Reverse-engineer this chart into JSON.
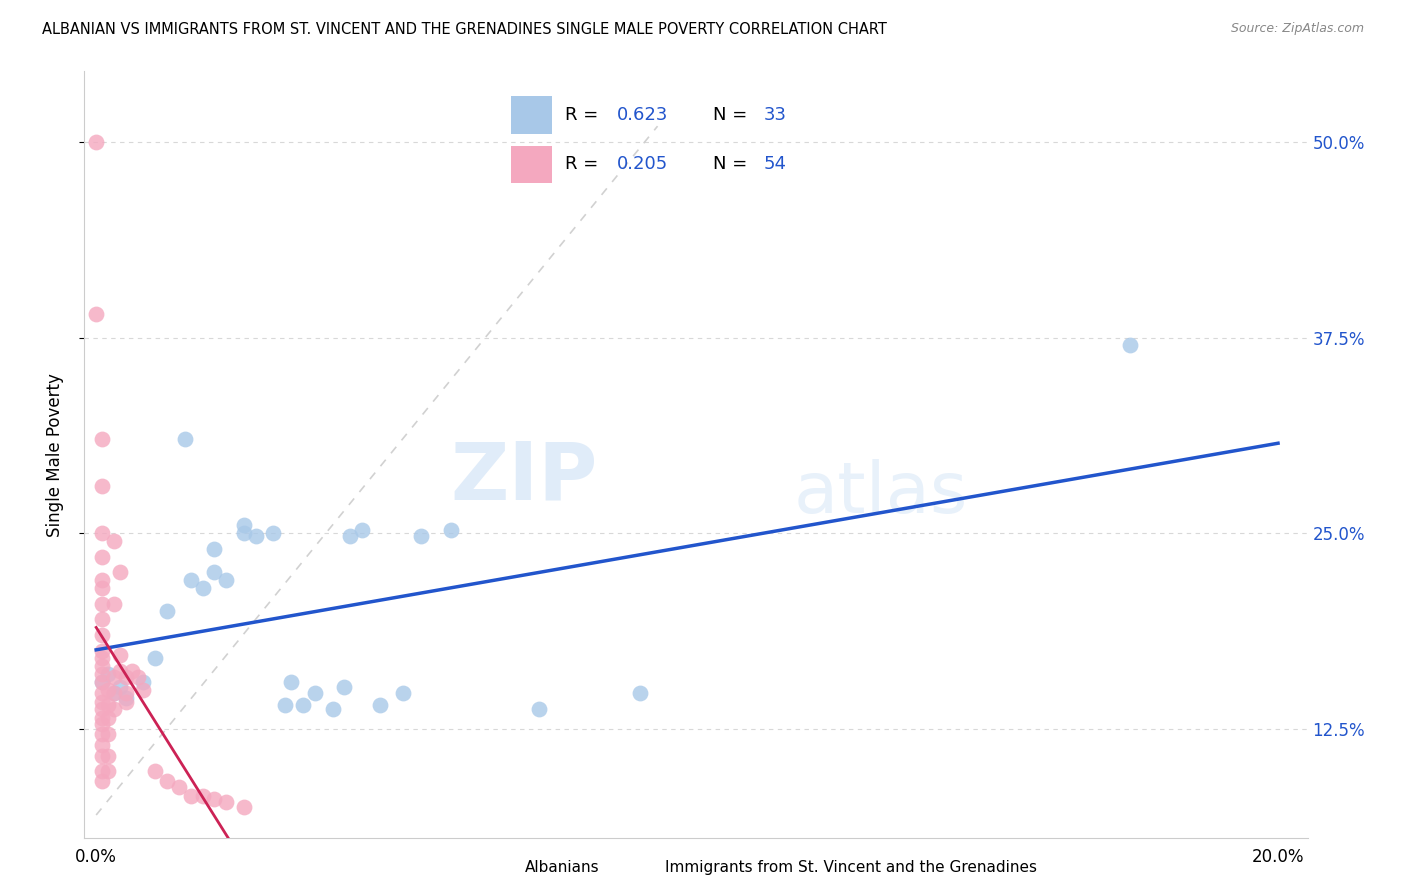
{
  "title": "ALBANIAN VS IMMIGRANTS FROM ST. VINCENT AND THE GRENADINES SINGLE MALE POVERTY CORRELATION CHART",
  "source": "Source: ZipAtlas.com",
  "ylabel": "Single Male Poverty",
  "ytick_labels": [
    "12.5%",
    "25.0%",
    "37.5%",
    "50.0%"
  ],
  "legend_blue_r": "0.623",
  "legend_blue_n": "33",
  "legend_pink_r": "0.205",
  "legend_pink_n": "54",
  "watermark_zip": "ZIP",
  "watermark_atlas": "atlas",
  "blue_color": "#a8c8e8",
  "pink_color": "#f4a8bf",
  "blue_line_color": "#2255cc",
  "pink_line_color": "#cc2255",
  "blue_scatter": [
    [
      0.001,
      0.155
    ],
    [
      0.002,
      0.16
    ],
    [
      0.003,
      0.148
    ],
    [
      0.004,
      0.152
    ],
    [
      0.005,
      0.145
    ],
    [
      0.008,
      0.155
    ],
    [
      0.01,
      0.17
    ],
    [
      0.012,
      0.2
    ],
    [
      0.015,
      0.31
    ],
    [
      0.016,
      0.22
    ],
    [
      0.018,
      0.215
    ],
    [
      0.02,
      0.225
    ],
    [
      0.02,
      0.24
    ],
    [
      0.022,
      0.22
    ],
    [
      0.025,
      0.25
    ],
    [
      0.025,
      0.255
    ],
    [
      0.027,
      0.248
    ],
    [
      0.03,
      0.25
    ],
    [
      0.032,
      0.14
    ],
    [
      0.033,
      0.155
    ],
    [
      0.035,
      0.14
    ],
    [
      0.037,
      0.148
    ],
    [
      0.04,
      0.138
    ],
    [
      0.042,
      0.152
    ],
    [
      0.043,
      0.248
    ],
    [
      0.045,
      0.252
    ],
    [
      0.048,
      0.14
    ],
    [
      0.052,
      0.148
    ],
    [
      0.055,
      0.248
    ],
    [
      0.06,
      0.252
    ],
    [
      0.075,
      0.138
    ],
    [
      0.092,
      0.148
    ],
    [
      0.175,
      0.37
    ]
  ],
  "pink_scatter": [
    [
      0.0,
      0.5
    ],
    [
      0.0,
      0.39
    ],
    [
      0.001,
      0.31
    ],
    [
      0.001,
      0.28
    ],
    [
      0.001,
      0.25
    ],
    [
      0.001,
      0.235
    ],
    [
      0.001,
      0.22
    ],
    [
      0.001,
      0.215
    ],
    [
      0.001,
      0.205
    ],
    [
      0.001,
      0.195
    ],
    [
      0.001,
      0.185
    ],
    [
      0.001,
      0.175
    ],
    [
      0.001,
      0.17
    ],
    [
      0.001,
      0.165
    ],
    [
      0.001,
      0.16
    ],
    [
      0.001,
      0.155
    ],
    [
      0.001,
      0.148
    ],
    [
      0.001,
      0.142
    ],
    [
      0.001,
      0.138
    ],
    [
      0.001,
      0.132
    ],
    [
      0.001,
      0.128
    ],
    [
      0.001,
      0.122
    ],
    [
      0.001,
      0.115
    ],
    [
      0.001,
      0.108
    ],
    [
      0.001,
      0.098
    ],
    [
      0.001,
      0.092
    ],
    [
      0.002,
      0.15
    ],
    [
      0.002,
      0.14
    ],
    [
      0.002,
      0.132
    ],
    [
      0.002,
      0.122
    ],
    [
      0.002,
      0.108
    ],
    [
      0.002,
      0.098
    ],
    [
      0.003,
      0.245
    ],
    [
      0.003,
      0.205
    ],
    [
      0.003,
      0.158
    ],
    [
      0.003,
      0.148
    ],
    [
      0.003,
      0.138
    ],
    [
      0.004,
      0.225
    ],
    [
      0.004,
      0.172
    ],
    [
      0.004,
      0.162
    ],
    [
      0.005,
      0.158
    ],
    [
      0.005,
      0.148
    ],
    [
      0.005,
      0.142
    ],
    [
      0.006,
      0.162
    ],
    [
      0.007,
      0.158
    ],
    [
      0.008,
      0.15
    ],
    [
      0.01,
      0.098
    ],
    [
      0.012,
      0.092
    ],
    [
      0.014,
      0.088
    ],
    [
      0.016,
      0.082
    ],
    [
      0.018,
      0.082
    ],
    [
      0.02,
      0.08
    ],
    [
      0.022,
      0.078
    ],
    [
      0.025,
      0.075
    ]
  ],
  "xlim": [
    -0.002,
    0.205
  ],
  "ylim": [
    0.055,
    0.545
  ],
  "xticks": [
    0.0,
    0.05,
    0.1,
    0.15,
    0.2
  ],
  "xtick_labels": [
    "0.0%",
    "",
    "",
    "",
    "20.0%"
  ],
  "yticks": [
    0.125,
    0.25,
    0.375,
    0.5
  ],
  "background_color": "#ffffff",
  "grid_color": "#d8d8d8"
}
